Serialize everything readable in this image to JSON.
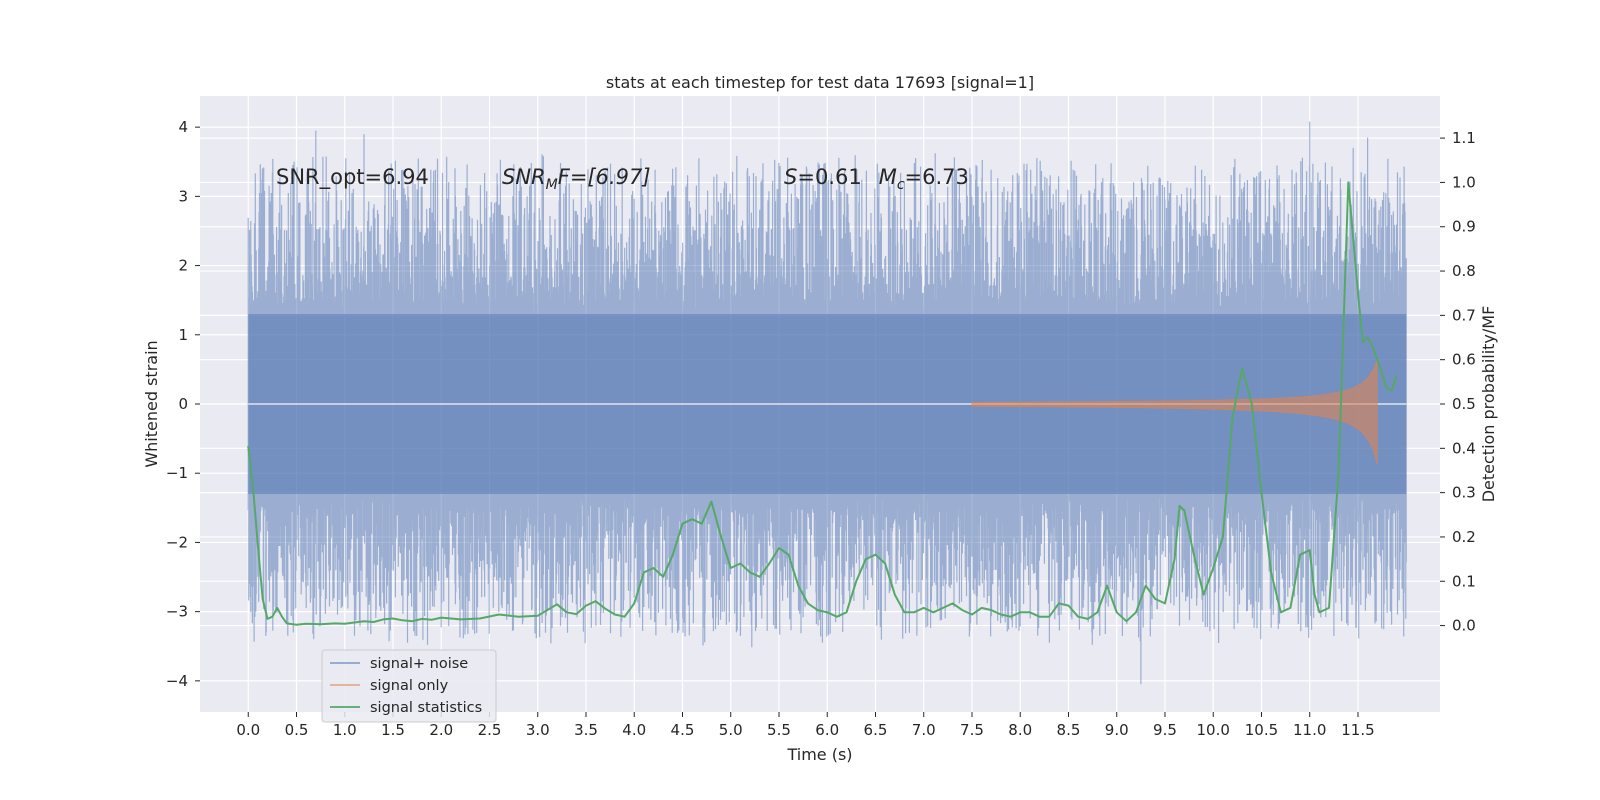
{
  "chart_data": {
    "type": "line",
    "title": "stats at each timestep for test data 17693 [signal=1]",
    "xlabel": "Time (s)",
    "ylabel": "Whitened strain",
    "ylabel_right": "Detection probability/MF",
    "xlim": [
      -0.5,
      12.35
    ],
    "ylim": [
      -4.45,
      4.45
    ],
    "ylim_right": [
      -0.195,
      1.195
    ],
    "x_ticks": [
      "0.0",
      "0.5",
      "1.0",
      "1.5",
      "2.0",
      "2.5",
      "3.0",
      "3.5",
      "4.0",
      "4.5",
      "5.0",
      "5.5",
      "6.0",
      "6.5",
      "7.0",
      "7.5",
      "8.0",
      "8.5",
      "9.0",
      "9.5",
      "10.0",
      "10.5",
      "11.0",
      "11.5"
    ],
    "y_ticks": [
      "4",
      "3",
      "2",
      "1",
      "0",
      "−1",
      "−2",
      "−3",
      "−4"
    ],
    "y_ticks_right": [
      "1.1",
      "1.0",
      "0.9",
      "0.8",
      "0.7",
      "0.6",
      "0.5",
      "0.4",
      "0.3",
      "0.2",
      "0.1",
      "0.0"
    ],
    "grid": true,
    "legend_position": "lower-left",
    "annotations": {
      "snr_opt": "SNR_opt=6.94",
      "snr_mf_sym": "SNR",
      "snr_mf_sub": "M",
      "snr_mf_rest": "F=[6.97]",
      "s_sym": "S",
      "s_val": "=0.61",
      "mc_sym": "M",
      "mc_sub": "c",
      "mc_val": "=6.73"
    },
    "noise": {
      "x_start": 0.0,
      "x_end": 12.0,
      "typical_upper": 1.3,
      "typical_lower": -1.3,
      "extreme_max": 4.1,
      "extreme_min": -4.05
    },
    "signal_only": {
      "x_start": 7.5,
      "x_end": 11.7,
      "peak_upper": 0.65,
      "peak_lower": -0.88
    },
    "series": [
      {
        "name": "signal+ noise",
        "color": "#4c72b0"
      },
      {
        "name": "signal only",
        "color": "#dd8452"
      },
      {
        "name": "signal statistics",
        "color": "#55a868",
        "x": [
          0.0,
          0.05,
          0.1,
          0.15,
          0.2,
          0.25,
          0.3,
          0.35,
          0.4,
          0.5,
          0.6,
          0.75,
          0.9,
          1.0,
          1.2,
          1.3,
          1.4,
          1.5,
          1.6,
          1.7,
          1.8,
          1.9,
          2.0,
          2.2,
          2.4,
          2.6,
          2.8,
          3.0,
          3.2,
          3.3,
          3.4,
          3.5,
          3.6,
          3.7,
          3.8,
          3.9,
          4.0,
          4.1,
          4.2,
          4.3,
          4.4,
          4.5,
          4.6,
          4.7,
          4.8,
          4.9,
          5.0,
          5.1,
          5.2,
          5.3,
          5.4,
          5.5,
          5.6,
          5.7,
          5.8,
          5.9,
          6.0,
          6.1,
          6.2,
          6.3,
          6.4,
          6.5,
          6.6,
          6.7,
          6.8,
          6.9,
          7.0,
          7.1,
          7.2,
          7.3,
          7.4,
          7.5,
          7.6,
          7.7,
          7.8,
          7.9,
          8.0,
          8.1,
          8.2,
          8.3,
          8.4,
          8.5,
          8.6,
          8.7,
          8.8,
          8.9,
          9.0,
          9.1,
          9.2,
          9.3,
          9.4,
          9.5,
          9.6,
          9.65,
          9.7,
          9.8,
          9.9,
          10.0,
          10.1,
          10.2,
          10.3,
          10.4,
          10.5,
          10.6,
          10.7,
          10.8,
          10.9,
          11.0,
          11.05,
          11.1,
          11.2,
          11.3,
          11.4,
          11.5,
          11.55,
          11.6,
          11.65,
          11.7,
          11.8,
          11.85,
          11.9
        ],
        "values": [
          0.405,
          0.31,
          0.18,
          0.06,
          0.015,
          0.02,
          0.04,
          0.02,
          0.005,
          0.002,
          0.004,
          0.003,
          0.005,
          0.004,
          0.01,
          0.008,
          0.014,
          0.016,
          0.012,
          0.01,
          0.015,
          0.013,
          0.018,
          0.014,
          0.016,
          0.025,
          0.02,
          0.022,
          0.048,
          0.03,
          0.026,
          0.045,
          0.055,
          0.038,
          0.025,
          0.02,
          0.05,
          0.12,
          0.13,
          0.11,
          0.16,
          0.23,
          0.24,
          0.23,
          0.28,
          0.2,
          0.13,
          0.14,
          0.12,
          0.11,
          0.14,
          0.175,
          0.16,
          0.09,
          0.05,
          0.035,
          0.03,
          0.02,
          0.03,
          0.1,
          0.15,
          0.16,
          0.14,
          0.07,
          0.03,
          0.03,
          0.04,
          0.03,
          0.04,
          0.05,
          0.035,
          0.025,
          0.04,
          0.035,
          0.025,
          0.02,
          0.03,
          0.03,
          0.02,
          0.02,
          0.05,
          0.045,
          0.02,
          0.015,
          0.03,
          0.09,
          0.03,
          0.01,
          0.03,
          0.09,
          0.06,
          0.05,
          0.15,
          0.27,
          0.26,
          0.16,
          0.07,
          0.13,
          0.2,
          0.47,
          0.58,
          0.5,
          0.3,
          0.12,
          0.03,
          0.04,
          0.16,
          0.17,
          0.07,
          0.03,
          0.04,
          0.35,
          1.0,
          0.75,
          0.64,
          0.65,
          0.63,
          0.6,
          0.535,
          0.53,
          0.565
        ]
      }
    ]
  }
}
